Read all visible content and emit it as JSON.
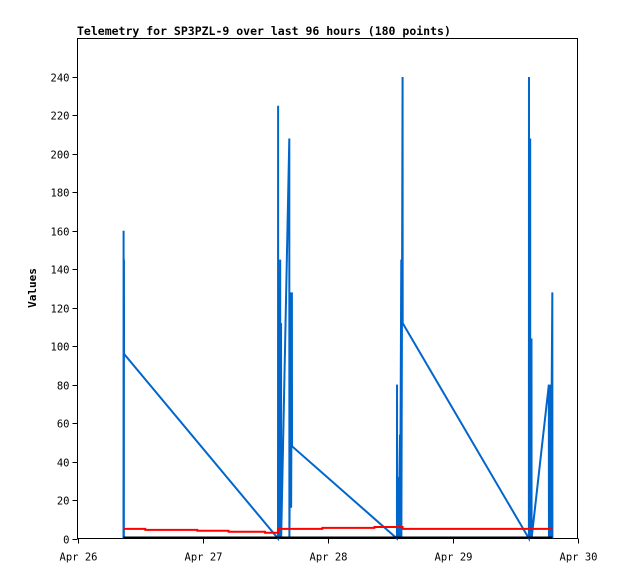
{
  "chart_data": {
    "type": "line",
    "title": "Telemetry for SP3PZL-9 over last 96 hours (180 points)",
    "xlabel": "",
    "ylabel": "Values",
    "xlim": [
      "2024-04-26 00:00",
      "2024-04-30 00:00"
    ],
    "ylim": [
      0,
      260
    ],
    "x_ticks": [
      "Apr 26",
      "Apr 27",
      "Apr 28",
      "Apr 29",
      "Apr 30"
    ],
    "y_ticks": [
      0,
      20,
      40,
      60,
      80,
      100,
      120,
      140,
      160,
      180,
      200,
      220,
      240
    ],
    "grid": false,
    "legend": "none",
    "series": [
      {
        "color": "#0066cc",
        "points": [
          [
            "2024-04-26 08:50",
            0
          ],
          [
            "2024-04-26 08:51",
            160
          ],
          [
            "2024-04-26 08:52",
            0
          ],
          [
            "2024-04-26 08:53",
            145
          ],
          [
            "2024-04-26 08:54",
            0
          ],
          [
            "2024-04-26 08:55",
            145
          ],
          [
            "2024-04-26 08:56",
            96
          ],
          [
            "2024-04-27 14:30",
            0
          ],
          [
            "2024-04-27 14:31",
            225
          ],
          [
            "2024-04-27 14:32",
            0
          ],
          [
            "2024-04-27 14:50",
            65
          ],
          [
            "2024-04-27 14:51",
            0
          ],
          [
            "2024-04-27 14:55",
            145
          ],
          [
            "2024-04-27 14:56",
            0
          ],
          [
            "2024-04-27 15:05",
            112
          ],
          [
            "2024-04-27 15:06",
            0
          ],
          [
            "2024-04-27 16:40",
            208
          ],
          [
            "2024-04-27 16:41",
            0
          ],
          [
            "2024-04-27 17:00",
            128
          ],
          [
            "2024-04-27 17:01",
            16
          ],
          [
            "2024-04-27 17:10",
            128
          ],
          [
            "2024-04-27 17:11",
            48
          ],
          [
            "2024-04-28 13:20",
            0
          ],
          [
            "2024-04-28 13:21",
            80
          ],
          [
            "2024-04-28 13:22",
            0
          ],
          [
            "2024-04-28 13:40",
            32
          ],
          [
            "2024-04-28 13:41",
            0
          ],
          [
            "2024-04-28 13:55",
            54
          ],
          [
            "2024-04-28 13:56",
            0
          ],
          [
            "2024-04-28 14:10",
            145
          ],
          [
            "2024-04-28 14:11",
            0
          ],
          [
            "2024-04-28 14:25",
            240
          ],
          [
            "2024-04-28 14:26",
            112
          ],
          [
            "2024-04-29 14:40",
            0
          ],
          [
            "2024-04-29 14:41",
            240
          ],
          [
            "2024-04-29 14:42",
            0
          ],
          [
            "2024-04-29 14:55",
            208
          ],
          [
            "2024-04-29 14:56",
            0
          ],
          [
            "2024-04-29 15:10",
            104
          ],
          [
            "2024-04-29 15:11",
            0
          ],
          [
            "2024-04-29 18:30",
            80
          ],
          [
            "2024-04-29 18:31",
            0
          ],
          [
            "2024-04-29 18:50",
            80
          ],
          [
            "2024-04-29 18:51",
            0
          ],
          [
            "2024-04-29 19:10",
            128
          ],
          [
            "2024-04-29 19:11",
            0
          ]
        ]
      },
      {
        "color": "#ff0000",
        "points": [
          [
            "2024-04-26 08:50",
            5
          ],
          [
            "2024-04-26 13:00",
            5
          ],
          [
            "2024-04-26 13:01",
            4.5
          ],
          [
            "2024-04-26 23:00",
            4.5
          ],
          [
            "2024-04-26 23:01",
            4
          ],
          [
            "2024-04-27 05:00",
            4
          ],
          [
            "2024-04-27 05:01",
            3.5
          ],
          [
            "2024-04-27 12:00",
            3.5
          ],
          [
            "2024-04-27 12:01",
            3
          ],
          [
            "2024-04-27 14:30",
            3
          ],
          [
            "2024-04-27 14:31",
            5
          ],
          [
            "2024-04-27 23:00",
            5
          ],
          [
            "2024-04-27 23:01",
            5.5
          ],
          [
            "2024-04-28 09:00",
            5.5
          ],
          [
            "2024-04-28 09:01",
            6
          ],
          [
            "2024-04-28 14:25",
            6
          ],
          [
            "2024-04-28 14:26",
            5
          ],
          [
            "2024-04-29 19:10",
            5
          ]
        ]
      },
      {
        "color": "#000000",
        "points": [
          [
            "2024-04-26 08:50",
            0.5
          ],
          [
            "2024-04-29 19:10",
            0.5
          ]
        ]
      }
    ]
  }
}
